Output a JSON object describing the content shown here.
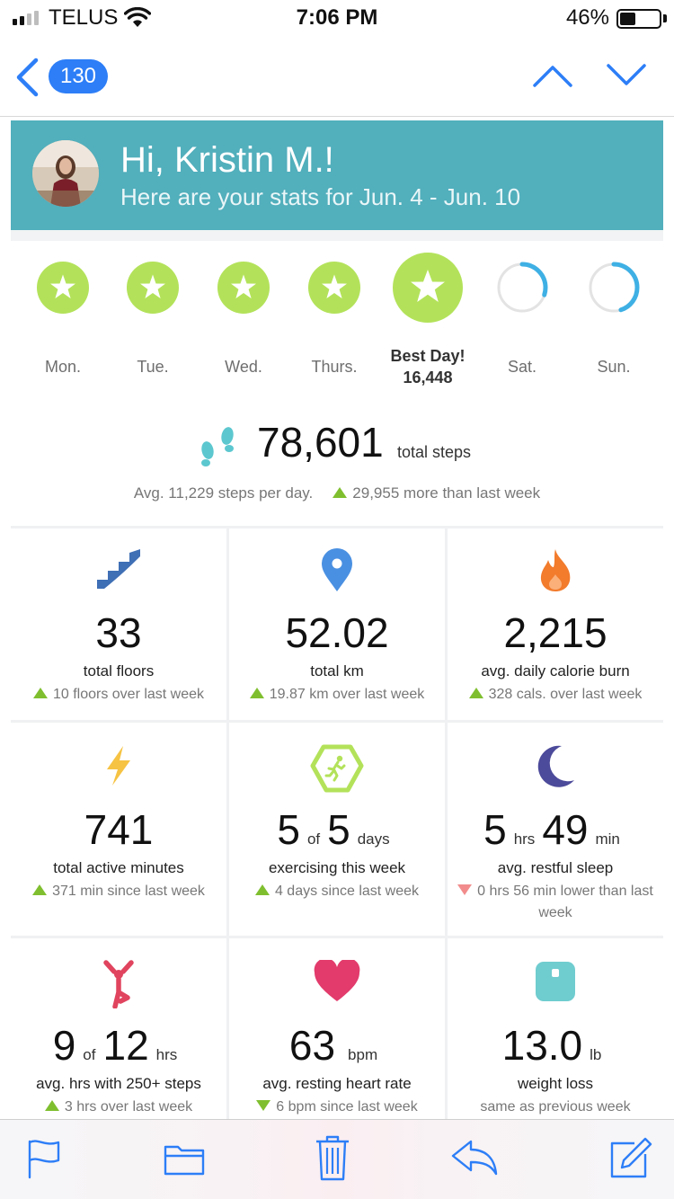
{
  "status_bar": {
    "carrier": "TELUS",
    "time": "7:06 PM",
    "battery_percent": "46%",
    "battery_level": 0.46,
    "signal_bars": 2
  },
  "nav": {
    "message_count": "130",
    "back_icon": "chevron-left-icon",
    "up_icon": "chevron-up-icon",
    "down_icon": "chevron-down-icon"
  },
  "header": {
    "greeting": "Hi, Kristin M.!",
    "subtitle": "Here are your stats for Jun. 4 - Jun. 10",
    "background": "#52afbc"
  },
  "days": [
    {
      "label": "Mon.",
      "status": "goal-met",
      "progress": 1.0
    },
    {
      "label": "Tue.",
      "status": "goal-met",
      "progress": 1.0
    },
    {
      "label": "Wed.",
      "status": "goal-met",
      "progress": 1.0
    },
    {
      "label": "Thurs.",
      "status": "goal-met",
      "progress": 1.0
    },
    {
      "label": "Best Day!",
      "value": "16,448",
      "status": "best-day",
      "progress": 1.0
    },
    {
      "label": "Sat.",
      "status": "partial",
      "progress": 0.3
    },
    {
      "label": "Sun.",
      "status": "partial",
      "progress": 0.45
    }
  ],
  "steps": {
    "total": "78,601",
    "unit": "total steps",
    "average": "Avg. 11,229 steps per day.",
    "change": "29,955 more than last week"
  },
  "tiles": [
    {
      "icon": "stairs-icon",
      "value": "33",
      "label": "total floors",
      "change": "10 floors over last week",
      "trend": "up"
    },
    {
      "icon": "location-pin-icon",
      "value": "52.02",
      "label": "total km",
      "change": "19.87 km over last week",
      "trend": "up"
    },
    {
      "icon": "flame-icon",
      "value": "2,215",
      "label": "avg. daily calorie burn",
      "change": "328 cals. over last week",
      "trend": "up"
    },
    {
      "icon": "lightning-icon",
      "value": "741",
      "label": "total active minutes",
      "change": "371 min since last week",
      "trend": "up"
    },
    {
      "icon": "exercise-badge-icon",
      "value_parts": [
        "5",
        "of",
        "5",
        "days"
      ],
      "label": "exercising this week",
      "change": "4 days since last week",
      "trend": "up"
    },
    {
      "icon": "moon-icon",
      "value_parts": [
        "5",
        "hrs",
        "49",
        "min"
      ],
      "label": "avg. restful sleep",
      "change": "0 hrs 56 min lower than last week",
      "trend": "down-red"
    },
    {
      "icon": "stretching-person-icon",
      "value_parts": [
        "9",
        "of",
        "12",
        "hrs"
      ],
      "label": "avg. hrs with 250+ steps",
      "change": "3 hrs over last week",
      "trend": "up"
    },
    {
      "icon": "heart-icon",
      "value_parts": [
        "63",
        "bpm"
      ],
      "label": "avg. resting heart rate",
      "change": "6 bpm since last week",
      "trend": "down-green"
    },
    {
      "icon": "scale-icon",
      "value_parts": [
        "13.0",
        "lb"
      ],
      "label": "weight loss",
      "change": "same as previous week",
      "trend": "none"
    }
  ],
  "colors": {
    "goal_green": "#b3e25a",
    "progress_blue": "#3fb0e4",
    "ios_blue": "#2d7ef7",
    "up_arrow": "#7fbf2f",
    "down_arrow_red": "#f28c8c"
  },
  "toolbar": {
    "icons": [
      "flag-icon",
      "folder-icon",
      "trash-icon",
      "reply-icon",
      "compose-icon"
    ]
  }
}
